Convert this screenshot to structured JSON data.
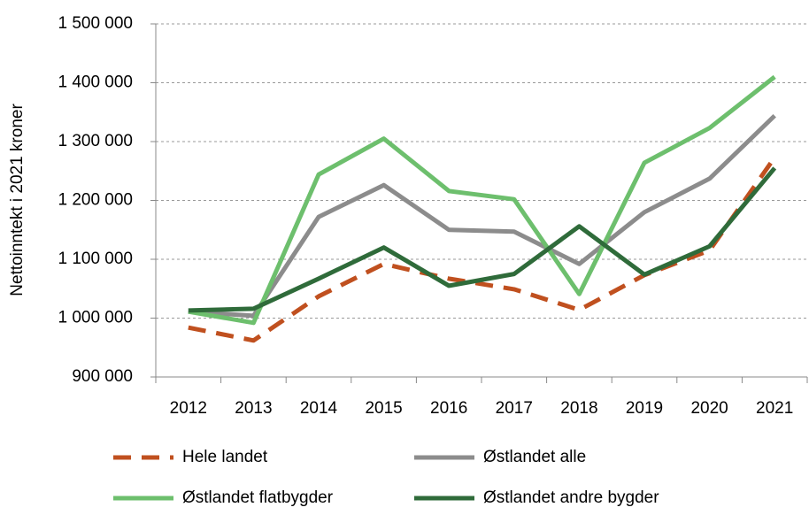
{
  "chart_data": {
    "type": "line",
    "y_axis_label": "Nettoinntekt i 2021 kroner",
    "categories": [
      "2012",
      "2013",
      "2014",
      "2015",
      "2016",
      "2017",
      "2018",
      "2019",
      "2020",
      "2021"
    ],
    "series": [
      {
        "name": "Hele landet",
        "color": "#c0501f",
        "dashed": true,
        "values": [
          984000,
          962000,
          1037000,
          1092000,
          1067000,
          1049000,
          1014000,
          1073000,
          1115000,
          1273000
        ]
      },
      {
        "name": "Østlandet alle",
        "color": "#8c8c8c",
        "values": [
          1011000,
          1004000,
          1172000,
          1226000,
          1150000,
          1147000,
          1092000,
          1180000,
          1237000,
          1344000
        ]
      },
      {
        "name": "Østlandet flatbygder",
        "color": "#6dbf6d",
        "values": [
          1011000,
          992000,
          1244000,
          1305000,
          1216000,
          1202000,
          1041000,
          1264000,
          1323000,
          1410000
        ]
      },
      {
        "name": "Østlandet andre bygder",
        "color": "#2f6b3a",
        "values": [
          1013000,
          1016000,
          1067000,
          1120000,
          1055000,
          1075000,
          1156000,
          1074000,
          1122000,
          1255000
        ]
      }
    ],
    "ylim": [
      900000,
      1500000
    ],
    "yticks": [
      {
        "value": 900000,
        "label": "900 000"
      },
      {
        "value": 1000000,
        "label": "1 000 000"
      },
      {
        "value": 1100000,
        "label": "1 100 000"
      },
      {
        "value": 1200000,
        "label": "1 200 000"
      },
      {
        "value": 1300000,
        "label": "1 300 000"
      },
      {
        "value": 1400000,
        "label": "1 400 000"
      },
      {
        "value": 1500000,
        "label": "1 500 000"
      }
    ],
    "grid": true
  }
}
